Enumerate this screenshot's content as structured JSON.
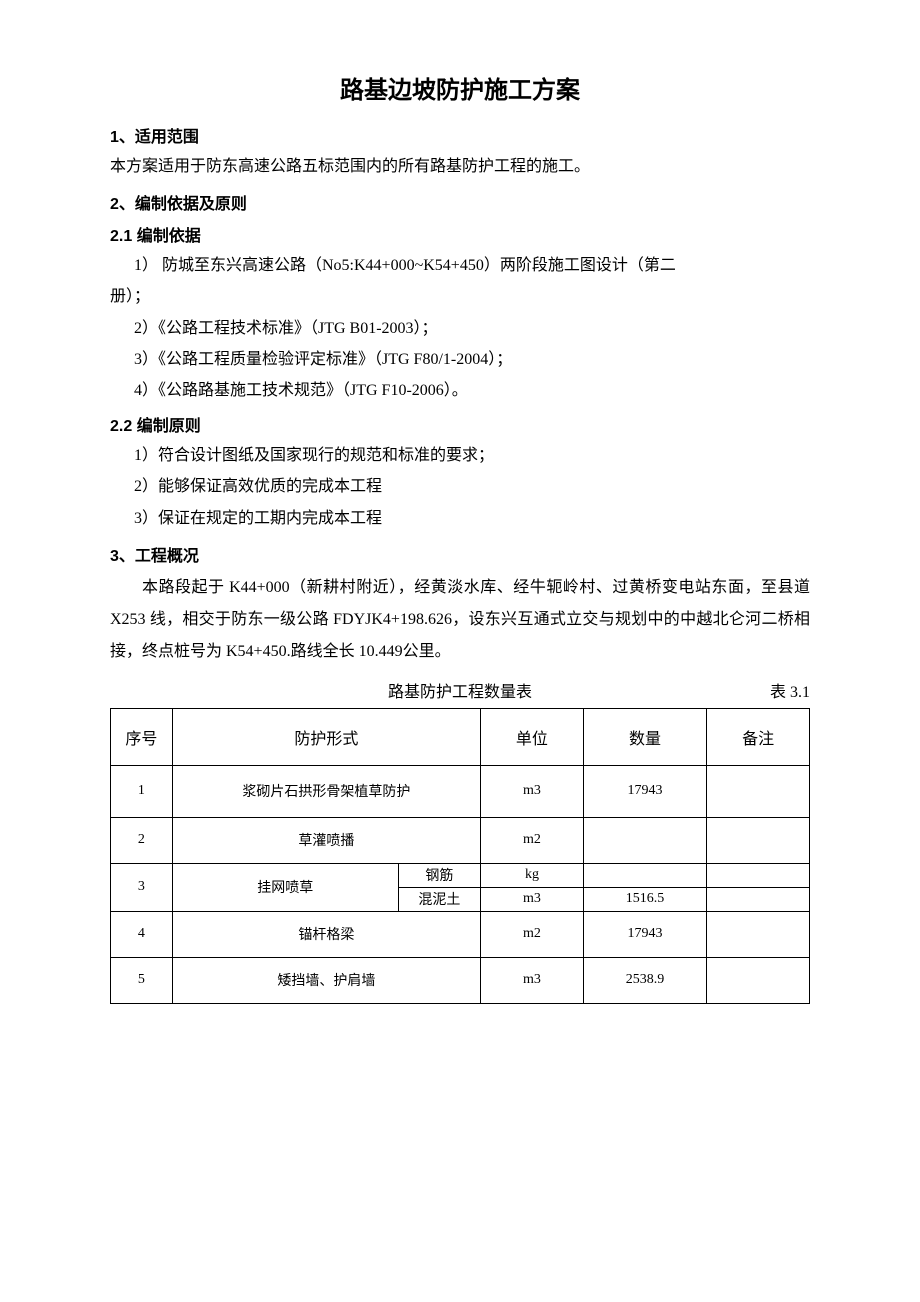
{
  "title": "路基边坡防护施工方案",
  "s1": {
    "heading": "1、适用范围",
    "p1": "本方案适用于防东高速公路五标范围内的所有路基防护工程的施工。"
  },
  "s2": {
    "heading": "2、编制依据及原则"
  },
  "s21": {
    "heading": "2.1 编制依据",
    "item1a": "1） 防城至东兴高速公路（No5:K44+000~K54+450）两阶段施工图设计（第二",
    "item1b": "册）；",
    "item2": "2）《公路工程技术标准》（JTG B01-2003）；",
    "item3": "3）《公路工程质量检验评定标准》（JTG F80/1-2004）；",
    "item4": "4）《公路路基施工技术规范》（JTG F10-2006）。"
  },
  "s22": {
    "heading": "2.2 编制原则",
    "item1": "1）符合设计图纸及国家现行的规范和标准的要求；",
    "item2": "2）能够保证高效优质的完成本工程",
    "item3": "3）保证在规定的工期内完成本工程"
  },
  "s3": {
    "heading": "3、工程概况",
    "p1": "本路段起于 K44+000（新耕村附近），经黄淡水库、经牛轭岭村、过黄桥变电站东面，至县道 X253 线，相交于防东一级公路 FDYJK4+198.626，设东兴互通式立交与规划中的中越北仑河二桥相接，终点桩号为 K54+450.路线全长 10.449公里。"
  },
  "table": {
    "caption_center": "路基防护工程数量表",
    "caption_right": "表 3.1",
    "columns": {
      "seq": "序号",
      "type": "防护形式",
      "unit": "单位",
      "qty": "数量",
      "note": "备注"
    },
    "rows": [
      {
        "seq": "1",
        "type": "浆砌片石拱形骨架植草防护",
        "unit": "m3",
        "qty": "17943",
        "note": ""
      },
      {
        "seq": "2",
        "type": "草灌喷播",
        "unit": "m2",
        "qty": "",
        "note": ""
      },
      {
        "seq": "3",
        "type": "挂网喷草",
        "sub": [
          {
            "label": "钢筋",
            "unit": "kg",
            "qty": "",
            "note": ""
          },
          {
            "label": "混泥土",
            "unit": "m3",
            "qty": "1516.5",
            "note": ""
          }
        ]
      },
      {
        "seq": "4",
        "type": "锚杆格梁",
        "unit": "m2",
        "qty": "17943",
        "note": ""
      },
      {
        "seq": "5",
        "type": "矮挡墙、护肩墙",
        "unit": "m3",
        "qty": "2538.9",
        "note": ""
      }
    ]
  }
}
